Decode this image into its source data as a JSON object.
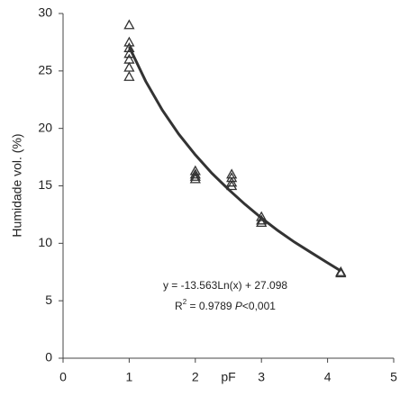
{
  "chart_data": {
    "type": "scatter",
    "x_label": "pF",
    "y_label": "Humidade vol. (%)",
    "annotation": {
      "equation": "y = -13.563Ln(x) + 27.098",
      "r": "R",
      "r_exp": "2",
      "r_value": " = 0.9789 ",
      "p": "P",
      "p_value": "<0,001"
    },
    "series": [
      {
        "color": "#333333",
        "x": [
          1,
          1,
          1,
          1,
          1,
          1,
          1,
          2,
          2,
          2,
          2,
          2.55,
          2.55,
          2.55,
          2.55,
          3,
          3,
          3,
          4.2,
          4.2
        ],
        "values": [
          29,
          27.5,
          27,
          26.5,
          26,
          25.3,
          24.5,
          16.3,
          16,
          15.8,
          15.6,
          16,
          15.7,
          15.3,
          15,
          12.3,
          12,
          11.8,
          7.5,
          7.4
        ]
      }
    ],
    "trend": {
      "color": "#333333",
      "x": [
        1,
        1.25,
        1.5,
        1.75,
        2,
        2.25,
        2.5,
        2.75,
        3,
        3.25,
        3.5,
        3.75,
        4,
        4.2
      ],
      "values": [
        27.1,
        24.1,
        21.6,
        19.5,
        17.7,
        16.1,
        14.7,
        13.4,
        12.2,
        11.1,
        10.1,
        9.2,
        8.3,
        7.6
      ]
    },
    "xlim": [
      0,
      5
    ],
    "xticks": [
      0,
      1,
      2,
      3,
      4,
      5
    ],
    "ylim": [
      0,
      30
    ],
    "yticks": [
      0,
      5,
      10,
      15,
      20,
      25,
      30
    ]
  }
}
